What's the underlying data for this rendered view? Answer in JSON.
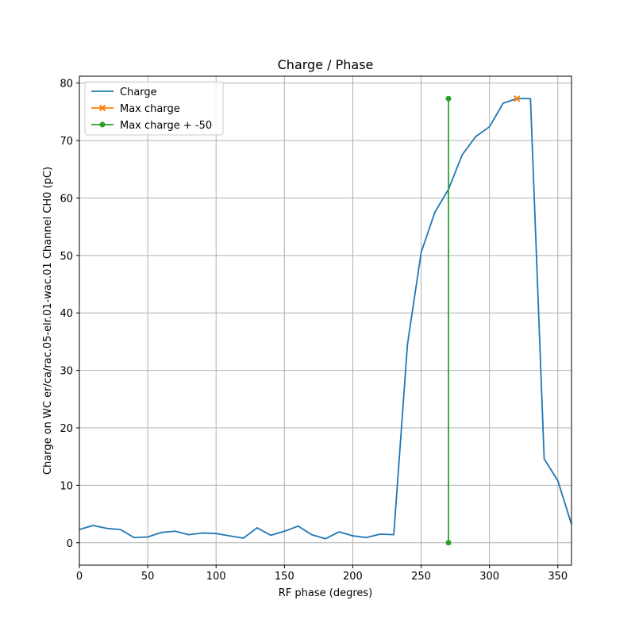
{
  "chart_data": {
    "type": "line",
    "title": "Charge / Phase",
    "xlabel": "RF phase (degres)",
    "ylabel": "Charge on WC er/ca/rac.05-elr.01-wac.01 Channel CH0 (pC)",
    "xlim": [
      0,
      360
    ],
    "ylim": [
      -3.9,
      81.2
    ],
    "xticks": [
      0,
      50,
      100,
      150,
      200,
      250,
      300,
      350
    ],
    "yticks": [
      0,
      10,
      20,
      30,
      40,
      50,
      60,
      70,
      80
    ],
    "grid": true,
    "legend_position": "top-left",
    "series": [
      {
        "name": "Charge",
        "color": "#1f77b4",
        "marker": "none",
        "x": [
          0,
          10,
          20,
          30,
          40,
          50,
          60,
          70,
          80,
          90,
          100,
          110,
          120,
          130,
          140,
          150,
          160,
          170,
          180,
          190,
          200,
          210,
          220,
          230,
          240,
          250,
          260,
          270,
          280,
          290,
          300,
          310,
          320,
          330,
          340,
          350,
          360
        ],
        "y": [
          2.3,
          3.0,
          2.5,
          2.3,
          0.9,
          1.0,
          1.8,
          2.0,
          1.4,
          1.7,
          1.6,
          1.2,
          0.8,
          2.6,
          1.3,
          2.0,
          2.9,
          1.4,
          0.7,
          1.9,
          1.2,
          0.9,
          1.5,
          1.4,
          34.5,
          50.5,
          57.5,
          61.5,
          67.5,
          70.7,
          72.4,
          76.5,
          77.3,
          77.3,
          14.6,
          10.8,
          3.2
        ]
      },
      {
        "name": "Max charge",
        "color": "#ff7f0e",
        "marker": "x",
        "x": [
          320
        ],
        "y": [
          77.3
        ]
      },
      {
        "name": "Max charge + -50",
        "color": "#2ca02c",
        "marker": "o",
        "x": [
          270,
          270
        ],
        "y": [
          0.0,
          77.3
        ]
      }
    ]
  }
}
